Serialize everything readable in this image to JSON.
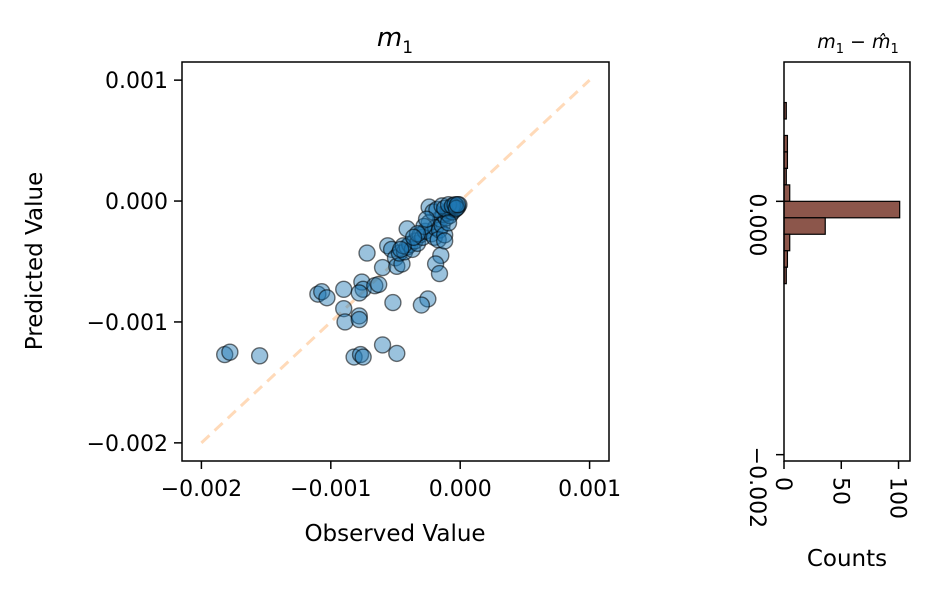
{
  "chart_data": [
    {
      "type": "scatter",
      "title": "m",
      "title_subscript": "1",
      "xlabel": "Observed Value",
      "ylabel": "Predicted Value",
      "xlim": [
        -0.00215,
        0.00115
      ],
      "ylim": [
        -0.00215,
        0.00115
      ],
      "xticks": [
        -0.002,
        -0.001,
        0.0,
        0.001
      ],
      "xtick_labels": [
        "−0.002",
        "−0.001",
        "0.000",
        "0.001"
      ],
      "yticks": [
        -0.002,
        -0.001,
        0.0,
        0.001
      ],
      "ytick_labels": [
        "−0.002",
        "−0.001",
        "0.000",
        "0.001"
      ],
      "grid": false,
      "point_color": "#1f77b4",
      "point_alpha": 0.45,
      "reference_line": {
        "from": [
          -0.002,
          -0.002
        ],
        "to": [
          0.001,
          0.001
        ],
        "color": "#ffdab9",
        "style": "dashed"
      },
      "points": [
        [
          -0.00182,
          -0.00127
        ],
        [
          -0.00178,
          -0.00125
        ],
        [
          -0.00155,
          -0.00128
        ],
        [
          -0.0011,
          -0.00077
        ],
        [
          -0.00107,
          -0.00075
        ],
        [
          -0.00103,
          -0.0008
        ],
        [
          -0.0009,
          -0.00073
        ],
        [
          -0.0009,
          -0.00089
        ],
        [
          -0.00089,
          -0.001
        ],
        [
          -0.00082,
          -0.00129
        ],
        [
          -0.00077,
          -0.00127
        ],
        [
          -0.00075,
          -0.00129
        ],
        [
          -0.00078,
          -0.00095
        ],
        [
          -0.00078,
          -0.00098
        ],
        [
          -0.00076,
          -0.00067
        ],
        [
          -0.00075,
          -0.00073
        ],
        [
          -0.00078,
          -0.00076
        ],
        [
          -0.00072,
          -0.00043
        ],
        [
          -0.00066,
          -0.0007
        ],
        [
          -0.00063,
          -0.00069
        ],
        [
          -0.0006,
          -0.00119
        ],
        [
          -0.00049,
          -0.00126
        ],
        [
          -0.00052,
          -0.00084
        ],
        [
          -0.00025,
          -0.00081
        ],
        [
          -0.0003,
          -0.00086
        ],
        [
          -0.0006,
          -0.00055
        ],
        [
          -0.00056,
          -0.00037
        ],
        [
          -0.00053,
          -0.0004
        ],
        [
          -0.0005,
          -0.00047
        ],
        [
          -0.00049,
          -0.00054
        ],
        [
          -0.00045,
          -0.00052
        ],
        [
          -0.00047,
          -0.00043
        ],
        [
          -0.00043,
          -0.00042
        ],
        [
          -0.00041,
          -0.00038
        ],
        [
          -0.00039,
          -0.00036
        ],
        [
          -0.00037,
          -0.0004
        ],
        [
          -0.00035,
          -0.00033
        ],
        [
          -0.00033,
          -0.00035
        ],
        [
          -0.00041,
          -0.00023
        ],
        [
          -0.00031,
          -0.00028
        ],
        [
          -0.00029,
          -0.0003
        ],
        [
          -0.00027,
          -0.00025
        ],
        [
          -0.00024,
          -0.00018
        ],
        [
          -0.00022,
          -0.00027
        ],
        [
          -0.0002,
          -0.0003
        ],
        [
          -0.00019,
          -0.00022
        ],
        [
          -0.00016,
          -0.00024
        ],
        [
          -0.00015,
          -0.00015
        ],
        [
          -0.00014,
          -0.0002
        ],
        [
          -0.00013,
          -0.00011
        ],
        [
          -0.00011,
          -0.00014
        ],
        [
          -0.0001,
          -0.0001
        ],
        [
          -9e-05,
          -8e-05
        ],
        [
          -8e-05,
          -0.00012
        ],
        [
          -7e-05,
          -6e-05
        ],
        [
          -6e-05,
          -9e-05
        ],
        [
          -5e-05,
          -5e-05
        ],
        [
          -4e-05,
          -7e-05
        ],
        [
          -3e-05,
          -4e-05
        ],
        [
          -2e-05,
          -5e-05
        ],
        [
          -1e-05,
          -3e-05
        ],
        [
          -0.00024,
          -5e-05
        ],
        [
          -0.00021,
          -9e-05
        ],
        [
          -0.00018,
          -7e-05
        ],
        [
          -0.00014,
          -4e-05
        ],
        [
          -0.00012,
          -6e-05
        ],
        [
          -9e-05,
          -3e-05
        ],
        [
          -6e-05,
          -4e-05
        ],
        [
          -4e-05,
          -3e-05
        ],
        [
          -3e-05,
          -6e-05
        ],
        [
          -2e-05,
          -3e-05
        ],
        [
          -0.00017,
          -0.00032
        ],
        [
          -0.00015,
          -0.00045
        ],
        [
          -0.00019,
          -0.00052
        ],
        [
          -0.00016,
          -0.0006
        ],
        [
          -0.00012,
          -0.00028
        ],
        [
          -0.00012,
          -0.00033
        ],
        [
          -9e-05,
          -0.00018
        ],
        [
          -0.00028,
          -0.00021
        ],
        [
          -0.00026,
          -0.00015
        ],
        [
          -0.00033,
          -0.00027
        ],
        [
          -0.00044,
          -0.00037
        ],
        [
          -0.00046,
          -0.0004
        ],
        [
          -0.00036,
          -0.0003
        ]
      ]
    },
    {
      "type": "bar",
      "orientation": "horizontal",
      "title": "m",
      "title_subscript": "1",
      "title_suffix": " − ",
      "title_hat": "m̂",
      "xlabel": "Counts",
      "xlim": [
        0,
        110
      ],
      "xticks": [
        0,
        50,
        100
      ],
      "xtick_labels": [
        "0",
        "50",
        "100"
      ],
      "ylim": [
        -0.00205,
        0.0011
      ],
      "yticks": [
        0.0,
        -0.002
      ],
      "ytick_labels": [
        "0.000",
        "−0.002"
      ],
      "bar_color": "#8c564b",
      "bins": [
        {
          "lo": 0.00065,
          "hi": 0.00078,
          "count": 2
        },
        {
          "lo": 0.00052,
          "hi": 0.00065,
          "count": 0
        },
        {
          "lo": 0.00039,
          "hi": 0.00052,
          "count": 3
        },
        {
          "lo": 0.00026,
          "hi": 0.00039,
          "count": 3
        },
        {
          "lo": 0.00013,
          "hi": 0.00026,
          "count": 2
        },
        {
          "lo": 0.0,
          "hi": 0.00013,
          "count": 5
        },
        {
          "lo": -0.00013,
          "hi": 0.0,
          "count": 101
        },
        {
          "lo": -0.00026,
          "hi": -0.00013,
          "count": 36
        },
        {
          "lo": -0.00039,
          "hi": -0.00026,
          "count": 5
        },
        {
          "lo": -0.00052,
          "hi": -0.00039,
          "count": 3
        },
        {
          "lo": -0.00065,
          "hi": -0.00052,
          "count": 2
        }
      ]
    }
  ]
}
